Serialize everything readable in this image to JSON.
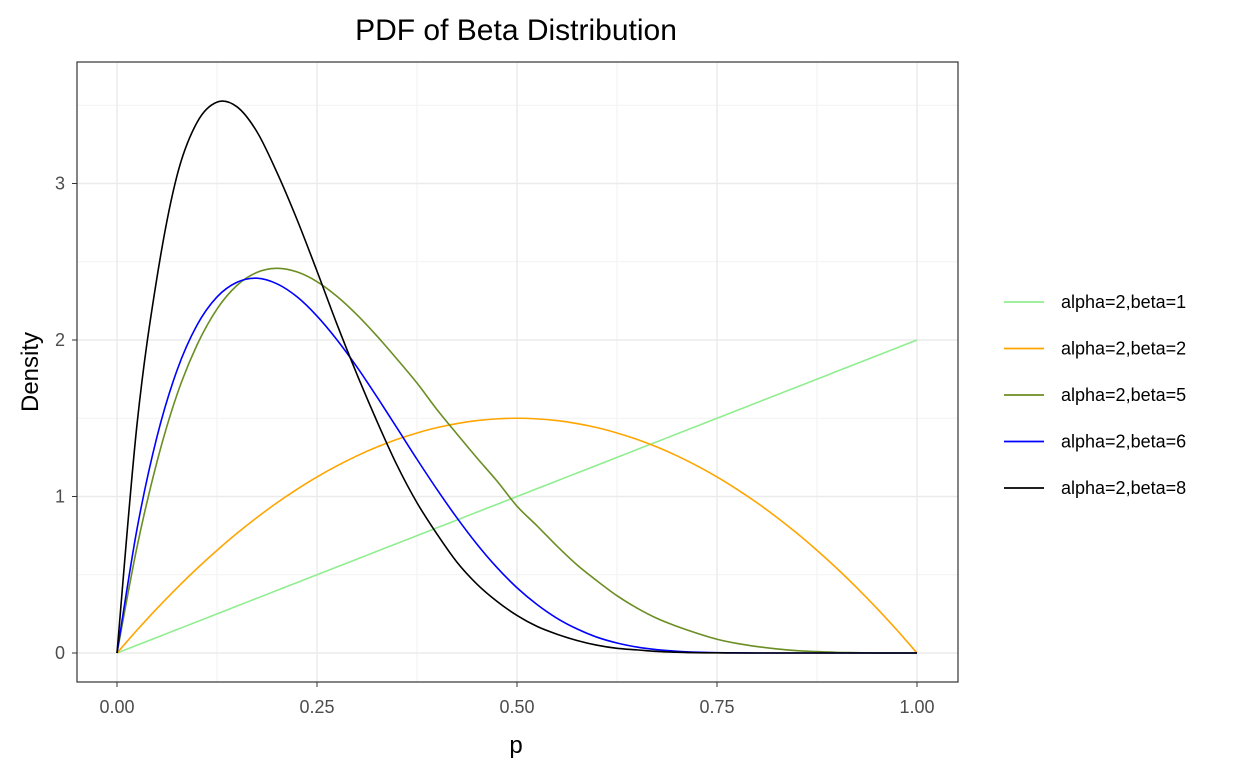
{
  "chart_data": {
    "type": "line",
    "title": "PDF of Beta Distribution",
    "xlabel": "p",
    "ylabel": "Density",
    "xlim": [
      -0.1,
      1.05
    ],
    "ylim": [
      -0.17,
      3.7
    ],
    "x_ticks": [
      0,
      0.25,
      0.5,
      0.75,
      1
    ],
    "x_tick_labels": [
      "0.00",
      "0.25",
      "0.50",
      "0.75",
      "1.00"
    ],
    "y_ticks": [
      0,
      1,
      2,
      3
    ],
    "y_tick_labels": [
      "0",
      "1",
      "2",
      "3"
    ],
    "grid": true,
    "legend_position": "right",
    "x": [
      0,
      0.025,
      0.05,
      0.075,
      0.1,
      0.125,
      0.15,
      0.175,
      0.2,
      0.225,
      0.25,
      0.275,
      0.3,
      0.325,
      0.35,
      0.375,
      0.4,
      0.425,
      0.45,
      0.475,
      0.5,
      0.525,
      0.55,
      0.575,
      0.6,
      0.625,
      0.65,
      0.675,
      0.7,
      0.725,
      0.75,
      0.775,
      0.8,
      0.825,
      0.85,
      0.875,
      0.9,
      0.925,
      0.95,
      0.975,
      1
    ],
    "series": [
      {
        "name": "alpha=2,beta=1",
        "color": "#90ee90",
        "values": [
          0,
          0.05,
          0.1,
          0.15,
          0.2,
          0.25,
          0.3,
          0.35,
          0.4,
          0.45,
          0.5,
          0.55,
          0.6,
          0.65,
          0.7,
          0.75,
          0.8,
          0.85,
          0.9,
          0.95,
          1,
          1.05,
          1.1,
          1.15,
          1.2,
          1.25,
          1.3,
          1.35,
          1.4,
          1.45,
          1.5,
          1.55,
          1.6,
          1.65,
          1.7,
          1.75,
          1.8,
          1.85,
          1.9,
          1.95,
          2
        ]
      },
      {
        "name": "alpha=2,beta=2",
        "color": "#ffa500",
        "values": [
          0,
          0.146,
          0.285,
          0.416,
          0.54,
          0.656,
          0.765,
          0.866,
          0.96,
          1.046,
          1.125,
          1.196,
          1.26,
          1.316,
          1.365,
          1.406,
          1.44,
          1.466,
          1.485,
          1.496,
          1.5,
          1.496,
          1.485,
          1.466,
          1.44,
          1.406,
          1.365,
          1.316,
          1.26,
          1.196,
          1.125,
          1.046,
          0.96,
          0.866,
          0.765,
          0.656,
          0.54,
          0.416,
          0.285,
          0.146,
          0
        ]
      },
      {
        "name": "alpha=2,beta=5",
        "color": "#6b8e23",
        "values": [
          0,
          0.677,
          1.222,
          1.651,
          1.968,
          2.198,
          2.349,
          2.432,
          2.458,
          2.435,
          2.373,
          2.279,
          2.161,
          2.025,
          1.878,
          1.725,
          1.555,
          1.399,
          1.246,
          1.099,
          0.938,
          0.813,
          0.683,
          0.563,
          0.461,
          0.366,
          0.287,
          0.221,
          0.17,
          0.126,
          0.088,
          0.061,
          0.041,
          0.026,
          0.015,
          0.009,
          0.004,
          0.002,
          0,
          0,
          0
        ]
      },
      {
        "name": "alpha=2,beta=6",
        "color": "#0000ff",
        "values": [
          0,
          0.792,
          1.382,
          1.806,
          2.095,
          2.275,
          2.369,
          2.395,
          2.359,
          2.276,
          2.153,
          2.001,
          1.827,
          1.636,
          1.438,
          1.238,
          1.045,
          0.863,
          0.695,
          0.546,
          0.417,
          0.31,
          0.222,
          0.154,
          0.101,
          0.064,
          0.038,
          0.021,
          0.011,
          0.005,
          0.002,
          0.001,
          0,
          0,
          0,
          0,
          0,
          0,
          0,
          0,
          0
        ]
      },
      {
        "name": "alpha=2,beta=8",
        "color": "#000000",
        "values": [
          0,
          1.46,
          2.4,
          3.05,
          3.39,
          3.52,
          3.49,
          3.33,
          3.07,
          2.77,
          2.44,
          2.1,
          1.78,
          1.48,
          1.2,
          0.96,
          0.76,
          0.58,
          0.44,
          0.33,
          0.24,
          0.17,
          0.12,
          0.08,
          0.05,
          0.03,
          0.02,
          0.01,
          0.005,
          0.002,
          0.001,
          0,
          0,
          0,
          0,
          0,
          0,
          0,
          0,
          0,
          0
        ]
      }
    ]
  }
}
